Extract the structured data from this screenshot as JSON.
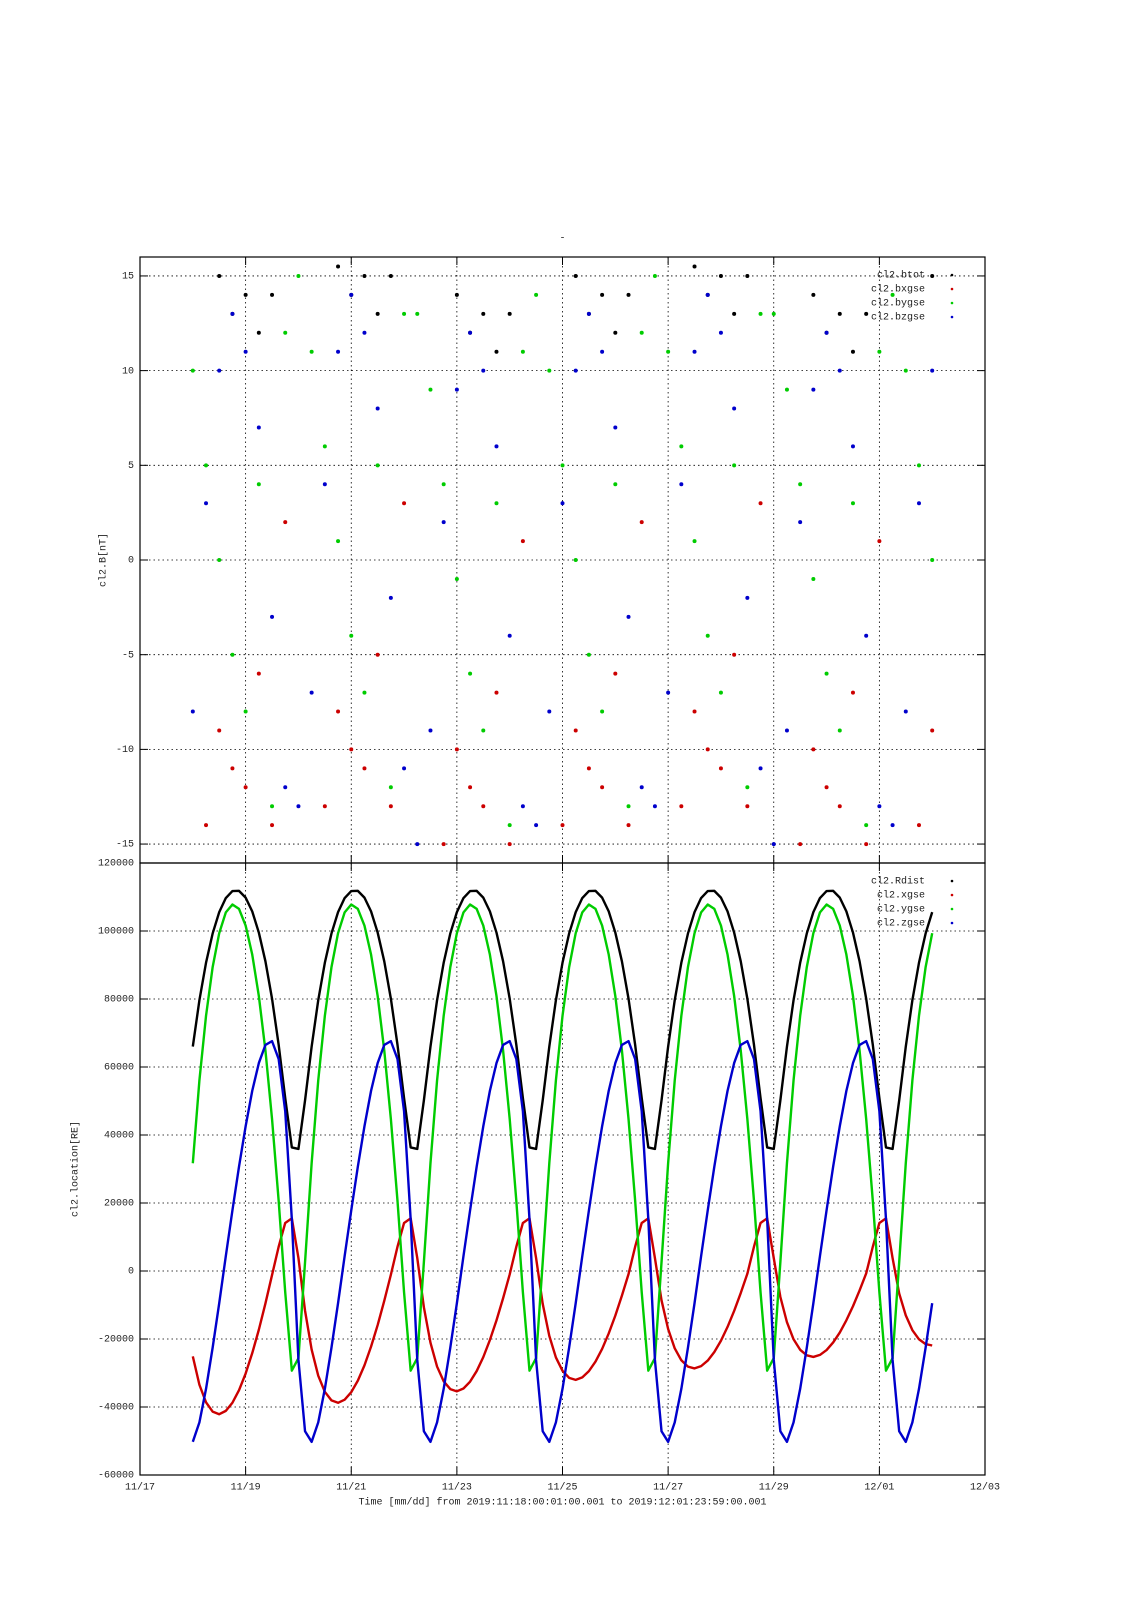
{
  "chart_data": [
    {
      "type": "scatter",
      "title": "-",
      "ylabel": "cl2.B[nT]",
      "x": [
        1,
        1.25,
        1.5,
        1.75,
        2,
        2.25,
        2.5,
        2.75,
        3,
        3.25,
        3.5,
        3.75,
        4,
        4.25,
        4.5,
        4.75,
        5,
        5.25,
        5.5,
        5.75,
        6,
        6.25,
        6.5,
        6.75,
        7,
        7.25,
        7.5,
        7.75,
        8,
        8.25,
        8.5,
        8.75,
        9,
        9.25,
        9.5,
        9.75,
        10,
        10.25,
        10.5,
        10.75,
        11,
        11.25,
        11.5,
        11.75,
        12,
        12.25,
        12.5,
        12.75,
        13,
        13.25,
        13.5,
        13.75,
        14,
        14.25,
        14.5,
        14.75,
        15
      ],
      "xlim": [
        0,
        16
      ],
      "ylim": [
        -16,
        16
      ],
      "yticks": [
        -15,
        -10,
        -5,
        0,
        5,
        10,
        15
      ],
      "grid": true,
      "legend": "upper right",
      "series": [
        {
          "name": "cl2.btot",
          "color": "#000000",
          "values": [
            null,
            null,
            15,
            13,
            14,
            12,
            14,
            null,
            null,
            null,
            null,
            15.5,
            14,
            15,
            13,
            15,
            null,
            null,
            null,
            null,
            14,
            12,
            13,
            11,
            13,
            null,
            null,
            null,
            null,
            15,
            13,
            14,
            12,
            14,
            null,
            null,
            null,
            null,
            15.5,
            14,
            15,
            13,
            15,
            null,
            null,
            null,
            null,
            14,
            12,
            13,
            11,
            13,
            null,
            null,
            null,
            null,
            15
          ]
        },
        {
          "name": "cl2.bxgse",
          "color": "#cc0000",
          "values": [
            null,
            -14,
            -9,
            -11,
            -12,
            -6,
            -14,
            2,
            null,
            null,
            -13,
            -8,
            -10,
            -11,
            -5,
            -13,
            3,
            null,
            null,
            -15,
            -10,
            -12,
            -13,
            -7,
            -15,
            1,
            null,
            null,
            -14,
            -9,
            -11,
            -12,
            -6,
            -14,
            2,
            null,
            null,
            -13,
            -8,
            -10,
            -11,
            -5,
            -13,
            3,
            null,
            null,
            -15,
            -10,
            -12,
            -13,
            -7,
            -15,
            1,
            null,
            null,
            -14,
            -9
          ]
        },
        {
          "name": "cl2.bygse",
          "color": "#00cc00",
          "values": [
            10,
            5,
            0,
            -5,
            -8,
            4,
            -13,
            12,
            15,
            11,
            6,
            1,
            -4,
            -7,
            5,
            -12,
            13,
            13,
            9,
            4,
            -1,
            -6,
            -9,
            3,
            -14,
            11,
            14,
            10,
            5,
            0,
            -5,
            -8,
            4,
            -13,
            12,
            15,
            11,
            6,
            1,
            -4,
            -7,
            5,
            -12,
            13,
            13,
            9,
            4,
            -1,
            -6,
            -9,
            3,
            -14,
            11,
            14,
            10,
            5,
            0
          ]
        },
        {
          "name": "cl2.bzgse",
          "color": "#0000cc",
          "values": [
            -8,
            3,
            10,
            13,
            11,
            7,
            -3,
            -12,
            -13,
            -7,
            4,
            11,
            14,
            12,
            8,
            -2,
            -11,
            -15,
            -9,
            2,
            9,
            12,
            10,
            6,
            -4,
            -13,
            -14,
            -8,
            3,
            10,
            13,
            11,
            7,
            -3,
            -12,
            -13,
            -7,
            4,
            11,
            14,
            12,
            8,
            -2,
            -11,
            -15,
            -9,
            2,
            9,
            12,
            10,
            6,
            -4,
            -13,
            -14,
            -8,
            3,
            10
          ]
        }
      ]
    },
    {
      "type": "line",
      "ylabel": "cl2.location[RE]",
      "xlabel": "Time [mm/dd]  from 2019:11:18:00:01:00.001  to  2019:12:01:23:59:00.001",
      "x": [
        1,
        1.125,
        1.25,
        1.375,
        1.5,
        1.625,
        1.75,
        1.875,
        2,
        2.125,
        2.25,
        2.375,
        2.5,
        2.625,
        2.75,
        2.875,
        3,
        3.125,
        3.25,
        3.375,
        3.5,
        3.625,
        3.75,
        3.875,
        4,
        4.125,
        4.25,
        4.375,
        4.5,
        4.625,
        4.75,
        4.875,
        5,
        5.125,
        5.25,
        5.375,
        5.5,
        5.625,
        5.75,
        5.875,
        6,
        6.125,
        6.25,
        6.375,
        6.5,
        6.625,
        6.75,
        6.875,
        7,
        7.125,
        7.25,
        7.375,
        7.5,
        7.625,
        7.75,
        7.875,
        8,
        8.125,
        8.25,
        8.375,
        8.5,
        8.625,
        8.75,
        8.875,
        9,
        9.125,
        9.25,
        9.375,
        9.5,
        9.625,
        9.75,
        9.875,
        10,
        10.125,
        10.25,
        10.375,
        10.5,
        10.625,
        10.75,
        10.875,
        11,
        11.125,
        11.25,
        11.375,
        11.5,
        11.625,
        11.75,
        11.875,
        12,
        12.125,
        12.25,
        12.375,
        12.5,
        12.625,
        12.75,
        12.875,
        13,
        13.125,
        13.25,
        13.375,
        13.5,
        13.625,
        13.75,
        13.875,
        14,
        14.125,
        14.25,
        14.375,
        14.5,
        14.625,
        14.75,
        14.875,
        15
      ],
      "xlim": [
        0,
        16
      ],
      "xticks": [
        {
          "value": 0,
          "label": "11/17"
        },
        {
          "value": 2,
          "label": "11/19"
        },
        {
          "value": 4,
          "label": "11/21"
        },
        {
          "value": 6,
          "label": "11/23"
        },
        {
          "value": 8,
          "label": "11/25"
        },
        {
          "value": 10,
          "label": "11/27"
        },
        {
          "value": 12,
          "label": "11/29"
        },
        {
          "value": 14,
          "label": "12/01"
        },
        {
          "value": 16,
          "label": "12/03"
        }
      ],
      "ylim": [
        -60000,
        120000
      ],
      "yticks": [
        -60000,
        -40000,
        -20000,
        0,
        20000,
        40000,
        60000,
        80000,
        100000,
        120000
      ],
      "grid": true,
      "legend": "upper right",
      "series": [
        {
          "name": "cl2.Rdist",
          "color": "#000000",
          "values": [
            66000,
            79640,
            90650,
            99240,
            105550,
            109690,
            111760,
            111810,
            109820,
            105770,
            99540,
            91080,
            80110,
            66600,
            50840,
            36350,
            35900,
            50160,
            66000,
            79640,
            90650,
            99240,
            105550,
            109690,
            111760,
            111810,
            109820,
            105770,
            99540,
            91080,
            80110,
            66600,
            50840,
            36350,
            35900,
            50160,
            66000,
            79640,
            90650,
            99240,
            105550,
            109690,
            111760,
            111810,
            109820,
            105770,
            99540,
            91080,
            80110,
            66600,
            50840,
            36350,
            35900,
            50160,
            66000,
            79640,
            90650,
            99240,
            105550,
            109690,
            111760,
            111810,
            109820,
            105770,
            99540,
            91080,
            80110,
            66600,
            50840,
            36350,
            35900,
            50160,
            66000,
            79640,
            90650,
            99240,
            105550,
            109690,
            111760,
            111810,
            109820,
            105770,
            99540,
            91080,
            80110,
            66600,
            50840,
            36350,
            35900,
            50160,
            66000,
            79640,
            90650,
            99240,
            105550,
            109690,
            111760,
            111810,
            109820,
            105770,
            99540,
            91080,
            80110,
            66600,
            50840,
            36350,
            35900,
            50160,
            66000,
            79640,
            90650,
            99240,
            105550
          ]
        },
        {
          "name": "cl2.xgse",
          "color": "#cc0000",
          "values": [
            -25110,
            -33460,
            -38620,
            -41350,
            -42130,
            -41140,
            -38750,
            -35040,
            -30160,
            -24170,
            -17280,
            -9530,
            -1200,
            7100,
            14130,
            15500,
            3810,
            -11670,
            -23100,
            -30780,
            -35530,
            -38040,
            -38760,
            -37850,
            -35650,
            -32240,
            -27750,
            -22240,
            -15900,
            -8770,
            -1100,
            7100,
            14130,
            15500,
            3810,
            -10650,
            -21090,
            -28110,
            -32440,
            -34730,
            -35390,
            -34560,
            -32550,
            -29430,
            -25330,
            -20300,
            -14520,
            -8010,
            -1010,
            7100,
            14130,
            15500,
            3810,
            -9640,
            -19080,
            -25430,
            -29350,
            -31430,
            -32020,
            -31270,
            -29450,
            -26630,
            -22920,
            -18370,
            -13130,
            -7240,
            -910,
            7100,
            14130,
            15500,
            3810,
            -8620,
            -17070,
            -22750,
            -26260,
            -28120,
            -28650,
            -27980,
            -26350,
            -23830,
            -20510,
            -16440,
            -11750,
            -6480,
            -820,
            7100,
            14130,
            15500,
            3810,
            -7610,
            -15070,
            -20080,
            -23170,
            -24810,
            -25280,
            -24680,
            -23250,
            -21020,
            -18100,
            -14500,
            -10370,
            -5720,
            -720,
            7100,
            14130,
            15500,
            3810,
            -6590,
            -13060,
            -17400,
            -20080,
            -21500,
            -21910
          ]
        },
        {
          "name": "cl2.ygse",
          "color": "#00cc00",
          "values": [
            31700,
            56070,
            75030,
            89330,
            99360,
            105470,
            107790,
            106490,
            101600,
            93080,
            80900,
            64870,
            44740,
            20770,
            -6270,
            -29300,
            -25660,
            2570,
            31700,
            56070,
            75030,
            89330,
            99360,
            105470,
            107790,
            106490,
            101600,
            93080,
            80900,
            64870,
            44740,
            20770,
            -6270,
            -29300,
            -25660,
            2570,
            31700,
            56070,
            75030,
            89330,
            99360,
            105470,
            107790,
            106490,
            101600,
            93080,
            80900,
            64870,
            44740,
            20770,
            -6270,
            -29300,
            -25660,
            2570,
            31700,
            56070,
            75030,
            89330,
            99360,
            105470,
            107790,
            106490,
            101600,
            93080,
            80900,
            64870,
            44740,
            20770,
            -6270,
            -29300,
            -25660,
            2570,
            31700,
            56070,
            75030,
            89330,
            99360,
            105470,
            107790,
            106490,
            101600,
            93080,
            80900,
            64870,
            44740,
            20770,
            -6270,
            -29300,
            -25660,
            2570,
            31700,
            56070,
            75030,
            89330,
            99360,
            105470,
            107790,
            106490,
            101600,
            93080,
            80900,
            64870,
            44740,
            20770,
            -6270,
            -29300,
            -25660,
            2570,
            31700,
            56070,
            75030,
            89330,
            99360
          ]
        },
        {
          "name": "cl2.zgse",
          "color": "#0000cc",
          "values": [
            -50240,
            -44520,
            -34670,
            -22610,
            -9470,
            4410,
            17830,
            30720,
            42550,
            52980,
            61150,
            66490,
            67610,
            62380,
            46990,
            15220,
            -26130,
            -47140,
            -50240,
            -44520,
            -34670,
            -22610,
            -9470,
            4410,
            17830,
            30720,
            42550,
            52980,
            61150,
            66490,
            67610,
            62380,
            46990,
            15220,
            -26130,
            -47140,
            -50240,
            -44520,
            -34670,
            -22610,
            -9470,
            4410,
            17830,
            30720,
            42550,
            52980,
            61150,
            66490,
            67610,
            62380,
            46990,
            15220,
            -26130,
            -47140,
            -50240,
            -44520,
            -34670,
            -22610,
            -9470,
            4410,
            17830,
            30720,
            42550,
            52980,
            61150,
            66490,
            67610,
            62380,
            46990,
            15220,
            -26130,
            -47140,
            -50240,
            -44520,
            -34670,
            -22610,
            -9470,
            4410,
            17830,
            30720,
            42550,
            52980,
            61150,
            66490,
            67610,
            62380,
            46990,
            15220,
            -26130,
            -47140,
            -50240,
            -44520,
            -34670,
            -22610,
            -9470,
            4410,
            17830,
            30720,
            42550,
            52980,
            61150,
            66490,
            67610,
            62380,
            46990,
            15220,
            -26130,
            -47140,
            -50240,
            -44520,
            -34670,
            -22610,
            -9470
          ]
        }
      ]
    }
  ]
}
